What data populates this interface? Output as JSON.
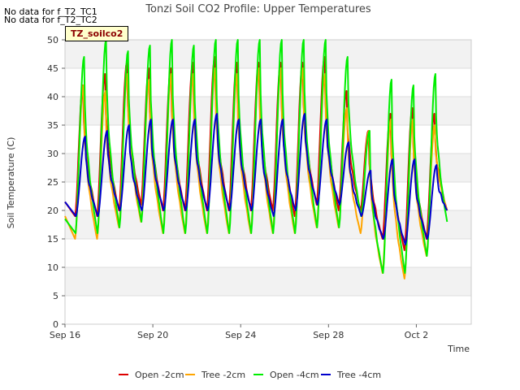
{
  "notes": [
    "No data for f_T2_TC1",
    "No data for f_T2_TC2"
  ],
  "site_tag": "TZ_soilco2",
  "chart_data": {
    "type": "line",
    "title": "Tonzi Soil CO2 Profile: Upper Temperatures",
    "xlabel": "Time",
    "ylabel": "Soil Temperature (C)",
    "ylim": [
      0,
      50
    ],
    "yticks": [
      0,
      5,
      10,
      15,
      20,
      25,
      30,
      35,
      40,
      45,
      50
    ],
    "xlim": [
      0,
      18.5
    ],
    "xticks": [
      {
        "day": 0,
        "label": "Sep 16"
      },
      {
        "day": 4,
        "label": "Sep 20"
      },
      {
        "day": 8,
        "label": "Sep 24"
      },
      {
        "day": 12,
        "label": "Sep 28"
      },
      {
        "day": 16,
        "label": "Oct 2"
      }
    ],
    "grid": true,
    "legend_position": "bottom",
    "series": [
      {
        "name": "Open -2cm",
        "color": "#dd0000",
        "daily_max": [
          42,
          44,
          46,
          45,
          45,
          46,
          47,
          46,
          46,
          46,
          46,
          47,
          41,
          34,
          37,
          38,
          37
        ],
        "daily_min": [
          19,
          19,
          20,
          21,
          20,
          20,
          20,
          20,
          20,
          20,
          19,
          21,
          20,
          20,
          15,
          13,
          15
        ]
      },
      {
        "name": "Tree -2cm",
        "color": "#ffa500",
        "daily_max": [
          42,
          41,
          44,
          43,
          44,
          44,
          45,
          44,
          45,
          45,
          45,
          44,
          38,
          34,
          36,
          36,
          35
        ],
        "daily_min": [
          15,
          15,
          17,
          18,
          16,
          16,
          16,
          16,
          16,
          16,
          16,
          17,
          17,
          16,
          9,
          8,
          12
        ]
      },
      {
        "name": "Open -4cm",
        "color": "#00ee00",
        "daily_max": [
          47,
          50,
          48,
          49,
          50,
          49,
          50,
          50,
          50,
          50,
          50,
          50,
          47,
          34,
          43,
          42,
          44
        ],
        "daily_min": [
          16,
          16,
          17,
          18,
          16,
          16,
          16,
          16,
          16,
          16,
          16,
          17,
          17,
          19,
          9,
          9,
          12
        ]
      },
      {
        "name": "Tree -4cm",
        "color": "#0000cc",
        "daily_max": [
          33,
          34,
          35,
          36,
          36,
          36,
          37,
          36,
          36,
          36,
          37,
          36,
          32,
          27,
          29,
          29,
          28
        ],
        "daily_min": [
          19,
          19,
          20,
          20,
          20,
          20,
          20,
          20,
          20,
          19,
          20,
          21,
          21,
          19,
          15,
          14,
          15
        ]
      }
    ],
    "end_values": [
      20,
      20,
      18,
      20
    ]
  }
}
